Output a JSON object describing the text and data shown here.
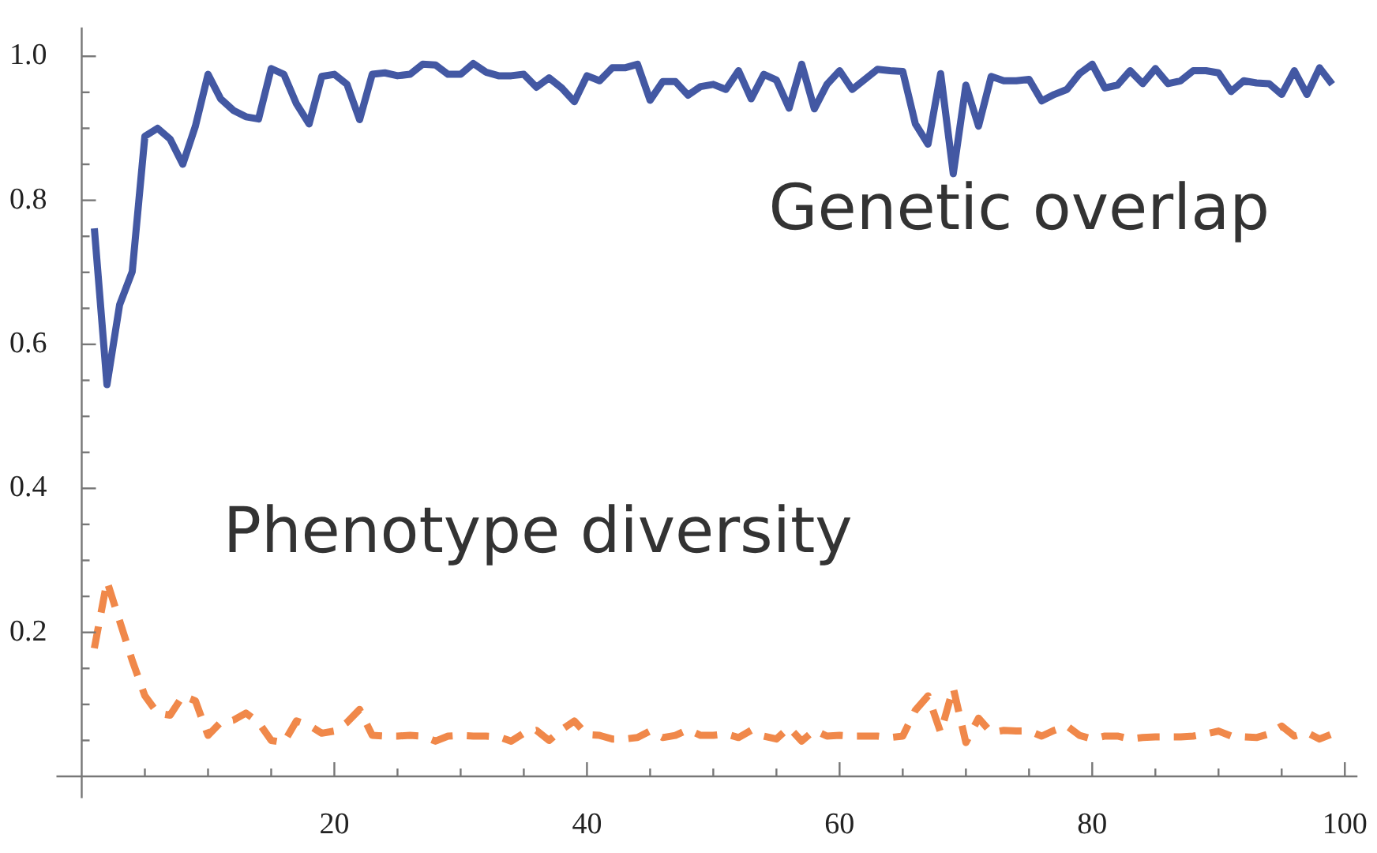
{
  "chart_data": {
    "type": "line",
    "x": [
      1,
      2,
      3,
      4,
      5,
      6,
      7,
      8,
      9,
      10,
      11,
      12,
      13,
      14,
      15,
      16,
      17,
      18,
      19,
      20,
      21,
      22,
      23,
      24,
      25,
      26,
      27,
      28,
      29,
      30,
      31,
      32,
      33,
      34,
      35,
      36,
      37,
      38,
      39,
      40,
      41,
      42,
      43,
      44,
      45,
      46,
      47,
      48,
      49,
      50,
      51,
      52,
      53,
      54,
      55,
      56,
      57,
      58,
      59,
      60,
      61,
      62,
      63,
      64,
      65,
      66,
      67,
      68,
      69,
      70,
      71,
      72,
      73,
      74,
      75,
      76,
      77,
      78,
      79,
      80,
      81,
      82,
      83,
      84,
      85,
      86,
      87,
      88,
      89,
      90,
      91,
      92,
      93,
      94,
      95,
      96,
      97,
      98,
      99
    ],
    "xlim": [
      -2,
      101
    ],
    "xticks": [
      {
        "value": 5,
        "label": null
      },
      {
        "value": 10,
        "label": null
      },
      {
        "value": 15,
        "label": null
      },
      20,
      {
        "value": 25,
        "label": null
      },
      {
        "value": 30,
        "label": null
      },
      {
        "value": 35,
        "label": null
      },
      40,
      {
        "value": 45,
        "label": null
      },
      {
        "value": 50,
        "label": null
      },
      {
        "value": 55,
        "label": null
      },
      60,
      {
        "value": 65,
        "label": null
      },
      {
        "value": 70,
        "label": null
      },
      {
        "value": 75,
        "label": null
      },
      80,
      {
        "value": 85,
        "label": null
      },
      {
        "value": 90,
        "label": null
      },
      {
        "value": 95,
        "label": null
      },
      100
    ],
    "ylim": [
      -0.03,
      1.04
    ],
    "yticks": [
      {
        "value": 0.05,
        "label": null
      },
      {
        "value": 0.1,
        "label": null
      },
      {
        "value": 0.15,
        "label": null
      },
      {
        "value": 0.2,
        "label": "0.2"
      },
      {
        "value": 0.25,
        "label": null
      },
      {
        "value": 0.3,
        "label": null
      },
      {
        "value": 0.35,
        "label": null
      },
      {
        "value": 0.4,
        "label": "0.4"
      },
      {
        "value": 0.45,
        "label": null
      },
      {
        "value": 0.5,
        "label": null
      },
      {
        "value": 0.55,
        "label": null
      },
      {
        "value": 0.6,
        "label": "0.6"
      },
      {
        "value": 0.65,
        "label": null
      },
      {
        "value": 0.7,
        "label": null
      },
      {
        "value": 0.75,
        "label": null
      },
      {
        "value": 0.8,
        "label": "0.8"
      },
      {
        "value": 0.85,
        "label": null
      },
      {
        "value": 0.9,
        "label": null
      },
      {
        "value": 0.95,
        "label": null
      },
      {
        "value": 1.0,
        "label": "1.0"
      }
    ],
    "grid": false,
    "legend": false,
    "marker": "none",
    "series": [
      {
        "name": "Genetic overlap",
        "color": "#4358a3",
        "line_style": "solid",
        "values": [
          0.761,
          0.544,
          0.655,
          0.701,
          0.889,
          0.9,
          0.885,
          0.85,
          0.903,
          0.975,
          0.941,
          0.925,
          0.916,
          0.913,
          0.983,
          0.975,
          0.934,
          0.906,
          0.972,
          0.975,
          0.961,
          0.912,
          0.975,
          0.977,
          0.973,
          0.975,
          0.989,
          0.988,
          0.975,
          0.975,
          0.99,
          0.978,
          0.973,
          0.973,
          0.975,
          0.957,
          0.97,
          0.956,
          0.937,
          0.973,
          0.966,
          0.984,
          0.984,
          0.989,
          0.939,
          0.965,
          0.965,
          0.946,
          0.958,
          0.961,
          0.954,
          0.98,
          0.941,
          0.975,
          0.967,
          0.928,
          0.989,
          0.927,
          0.961,
          0.98,
          0.954,
          0.968,
          0.982,
          0.98,
          0.979,
          0.906,
          0.878,
          0.976,
          0.837,
          0.96,
          0.903,
          0.972,
          0.966,
          0.966,
          0.968,
          0.938,
          0.947,
          0.954,
          0.976,
          0.989,
          0.956,
          0.96,
          0.98,
          0.962,
          0.983,
          0.962,
          0.966,
          0.98,
          0.98,
          0.977,
          0.951,
          0.966,
          0.963,
          0.962,
          0.947,
          0.98,
          0.947,
          0.984,
          0.961
        ]
      },
      {
        "name": "Phenotype diversity",
        "color": "#f0884a",
        "line_style": "dashed",
        "values": [
          0.178,
          0.271,
          0.216,
          0.161,
          0.112,
          0.088,
          0.085,
          0.112,
          0.105,
          0.057,
          0.075,
          0.078,
          0.088,
          0.075,
          0.05,
          0.047,
          0.077,
          0.071,
          0.06,
          0.063,
          0.075,
          0.093,
          0.057,
          0.056,
          0.056,
          0.057,
          0.056,
          0.049,
          0.056,
          0.057,
          0.056,
          0.056,
          0.055,
          0.049,
          0.06,
          0.064,
          0.05,
          0.065,
          0.077,
          0.058,
          0.057,
          0.052,
          0.052,
          0.054,
          0.063,
          0.054,
          0.057,
          0.065,
          0.057,
          0.057,
          0.059,
          0.054,
          0.064,
          0.056,
          0.052,
          0.068,
          0.049,
          0.064,
          0.056,
          0.057,
          0.056,
          0.056,
          0.056,
          0.054,
          0.056,
          0.092,
          0.112,
          0.061,
          0.123,
          0.047,
          0.081,
          0.061,
          0.064,
          0.063,
          0.063,
          0.056,
          0.064,
          0.07,
          0.057,
          0.052,
          0.056,
          0.056,
          0.052,
          0.054,
          0.055,
          0.055,
          0.055,
          0.056,
          0.059,
          0.063,
          0.056,
          0.055,
          0.054,
          0.059,
          0.07,
          0.056,
          0.061,
          0.052,
          0.059
        ]
      }
    ]
  }
}
